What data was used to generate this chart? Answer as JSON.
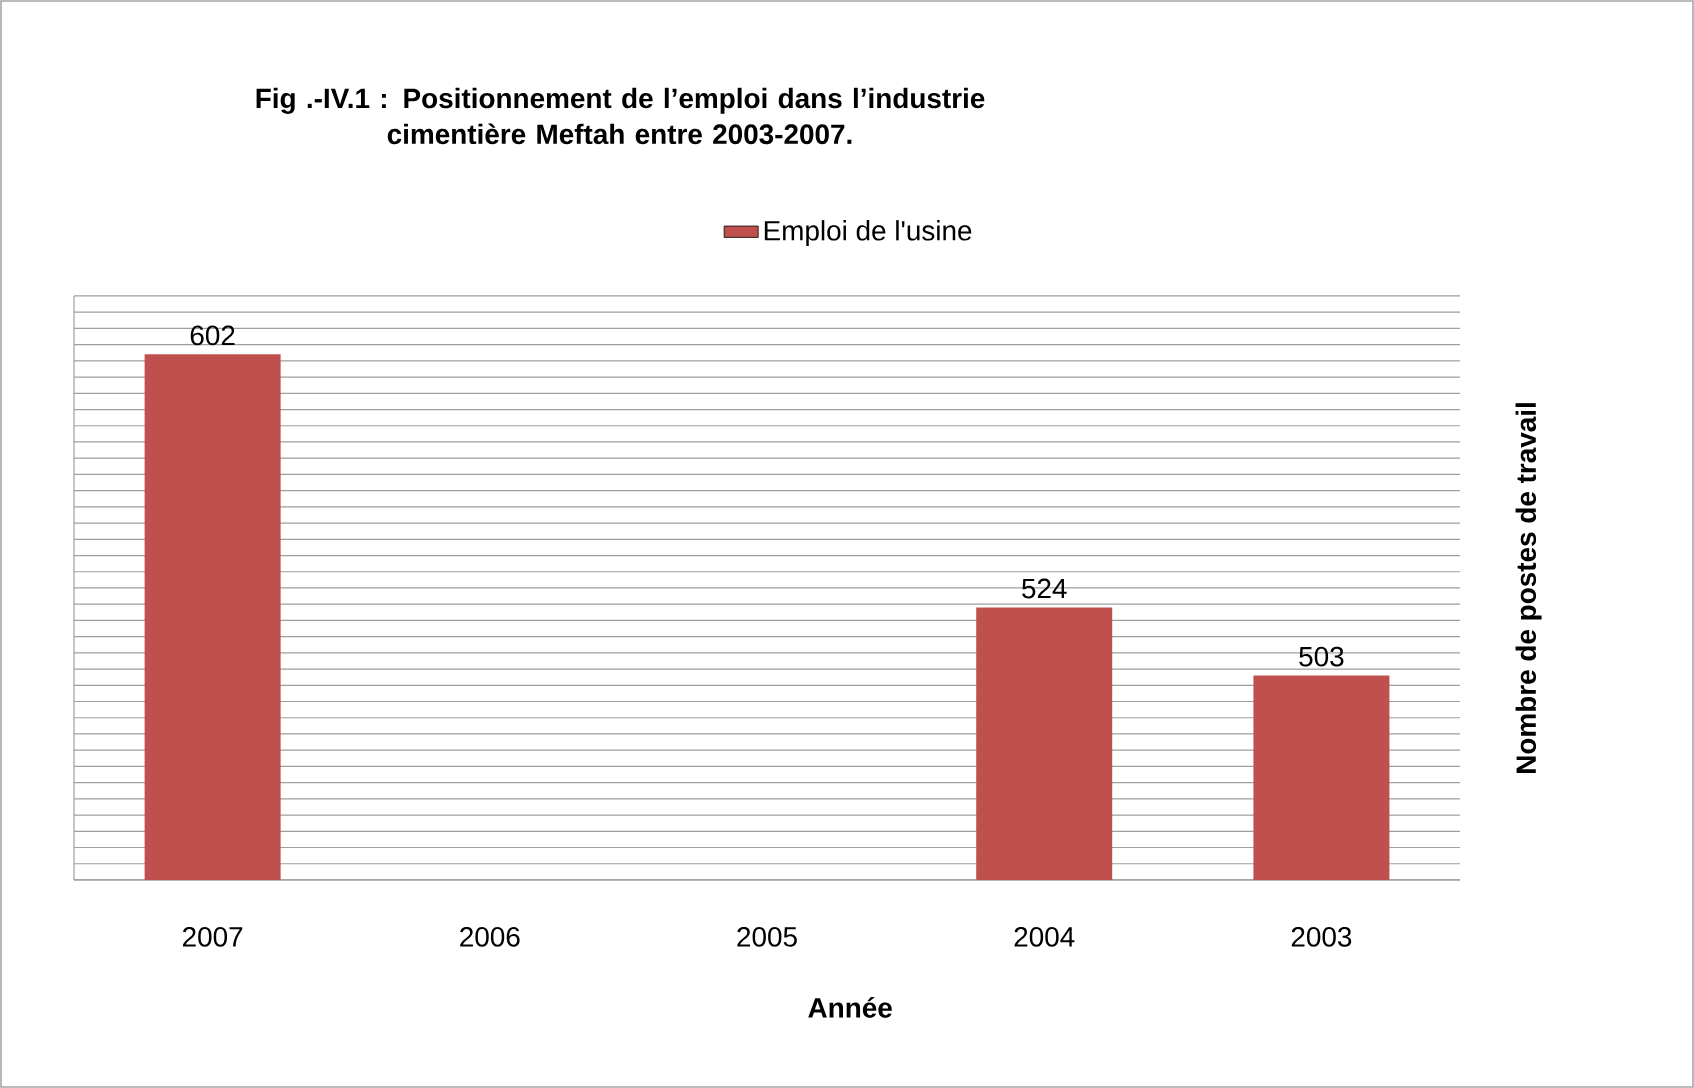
{
  "chart_data": {
    "type": "bar",
    "title": "Fig .-IV.1 : Positionnement de l’emploi dans l’industrie\ncimentière Meftah entre 2003-2007.",
    "xlabel": "Année",
    "ylabel": "Nombre de postes de travail",
    "categories": [
      "2007",
      "2006",
      "2005",
      "2004",
      "2003"
    ],
    "series": [
      {
        "name": "Emploi de l'usine",
        "color": "#c0504d",
        "values": [
          602,
          null,
          null,
          524,
          503
        ]
      }
    ],
    "ylim": [
      440,
      620
    ],
    "yticks": [
      {
        "value": 440,
        "label": null
      },
      {
        "value": 445,
        "label": null
      },
      {
        "value": 450,
        "label": null
      },
      {
        "value": 455,
        "label": null
      },
      {
        "value": 460,
        "label": null
      },
      {
        "value": 465,
        "label": null
      },
      {
        "value": 470,
        "label": null
      },
      {
        "value": 475,
        "label": null
      },
      {
        "value": 480,
        "label": null
      },
      {
        "value": 485,
        "label": null
      },
      {
        "value": 490,
        "label": null
      },
      {
        "value": 495,
        "label": null
      },
      {
        "value": 500,
        "label": null
      },
      {
        "value": 505,
        "label": null
      },
      {
        "value": 510,
        "label": null
      },
      {
        "value": 515,
        "label": null
      },
      {
        "value": 520,
        "label": null
      },
      {
        "value": 525,
        "label": null
      },
      {
        "value": 530,
        "label": null
      },
      {
        "value": 535,
        "label": null
      },
      {
        "value": 540,
        "label": null
      },
      {
        "value": 545,
        "label": null
      },
      {
        "value": 550,
        "label": null
      },
      {
        "value": 555,
        "label": null
      },
      {
        "value": 560,
        "label": null
      },
      {
        "value": 565,
        "label": null
      },
      {
        "value": 570,
        "label": null
      },
      {
        "value": 575,
        "label": null
      },
      {
        "value": 580,
        "label": null
      },
      {
        "value": 585,
        "label": null
      },
      {
        "value": 590,
        "label": null
      },
      {
        "value": 595,
        "label": null
      },
      {
        "value": 600,
        "label": null
      },
      {
        "value": 605,
        "label": null
      },
      {
        "value": 610,
        "label": null
      },
      {
        "value": 615,
        "label": null
      },
      {
        "value": 620,
        "label": null
      }
    ],
    "grid": "y",
    "legend": "top",
    "tick_labels": "x",
    "data_labels": true
  }
}
